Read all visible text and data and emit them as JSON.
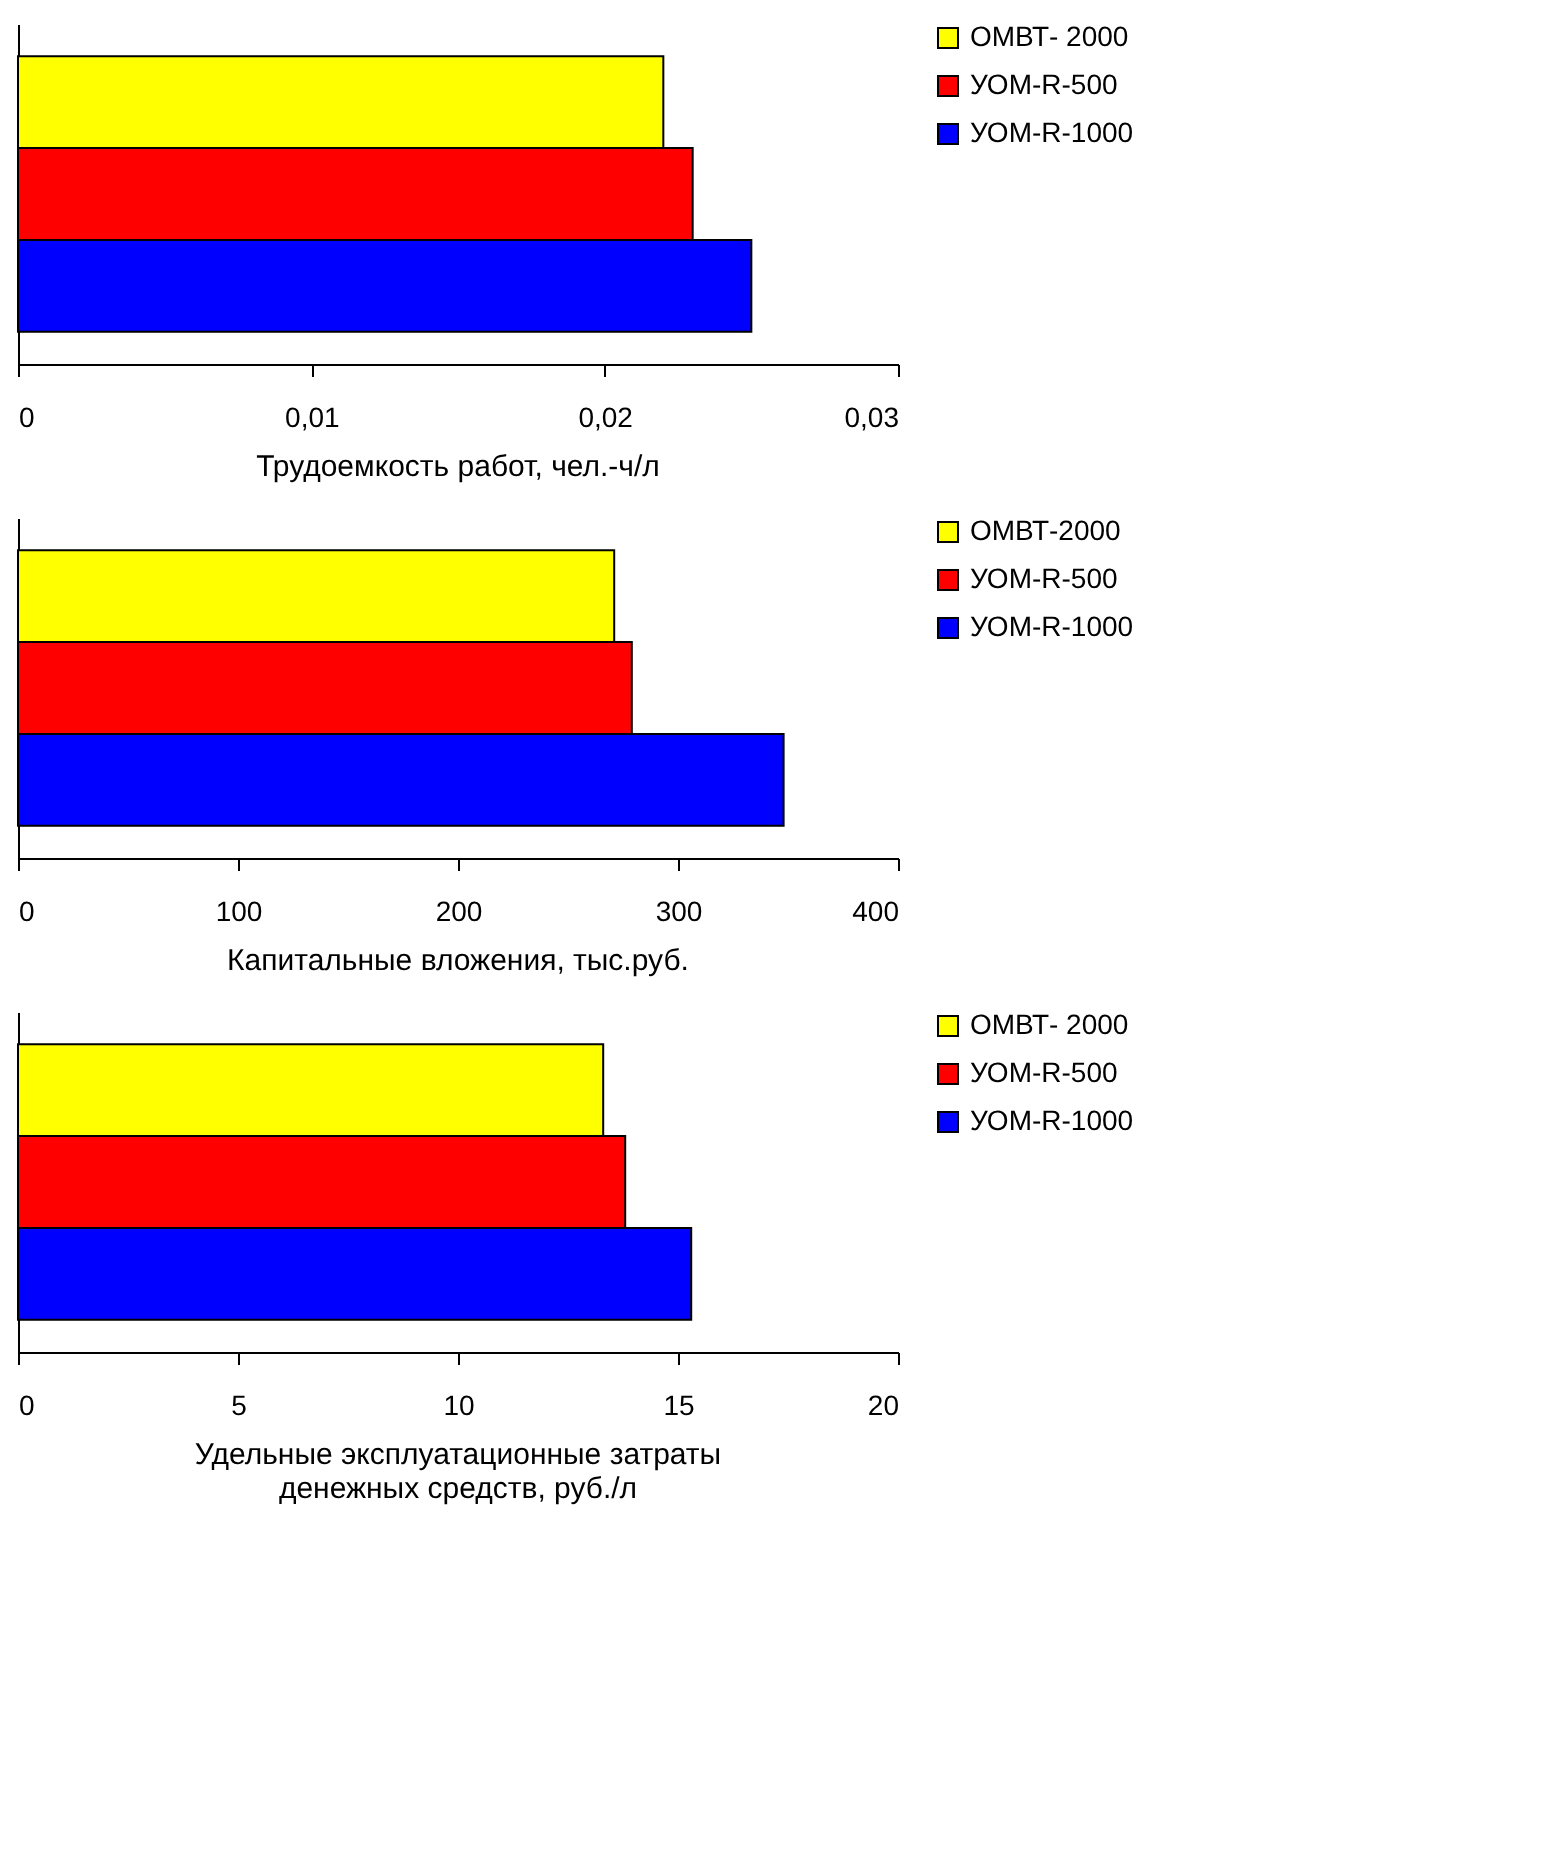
{
  "chart_data": [
    {
      "type": "bar",
      "orientation": "horizontal",
      "xlabel": "Трудоемкость работ, чел.-ч/л",
      "categories": [
        null
      ],
      "xlim": [
        0,
        0.03
      ],
      "xticks": [
        0,
        {
          "value": 0.01,
          "label": "0,01"
        },
        {
          "value": 0.02,
          "label": "0,02"
        },
        {
          "value": 0.03,
          "label": "0,03"
        }
      ],
      "grid": false,
      "legend": "right",
      "series": [
        {
          "name": "ОМВТ- 2000",
          "color": "#ffff00",
          "values": [
            0.022
          ]
        },
        {
          "name": "УОМ-R-500",
          "color": "#ff0000",
          "values": [
            0.023
          ]
        },
        {
          "name": "УОМ-R-1000",
          "color": "#0000ff",
          "values": [
            0.025
          ]
        }
      ]
    },
    {
      "type": "bar",
      "orientation": "horizontal",
      "xlabel": "Капитальные вложения, тыс.руб.",
      "categories": [
        null
      ],
      "xlim": [
        0,
        400
      ],
      "xticks": [
        0,
        100,
        200,
        300,
        400
      ],
      "grid": false,
      "legend": "right",
      "series": [
        {
          "name": "ОМВТ-2000",
          "color": "#ffff00",
          "values": [
            271
          ]
        },
        {
          "name": "УОМ-R-500",
          "color": "#ff0000",
          "values": [
            279
          ]
        },
        {
          "name": "УОМ-R-1000",
          "color": "#0000ff",
          "values": [
            348
          ]
        }
      ]
    },
    {
      "type": "bar",
      "orientation": "horizontal",
      "xlabel": "Удельные эксплуатационные затраты\nденежных средств, руб./л",
      "categories": [
        null
      ],
      "xlim": [
        0,
        20
      ],
      "xticks": [
        0,
        5,
        10,
        15,
        20
      ],
      "grid": false,
      "legend": "right",
      "series": [
        {
          "name": "ОМВТ- 2000",
          "color": "#ffff00",
          "values": [
            13.3
          ]
        },
        {
          "name": "УОМ-R-500",
          "color": "#ff0000",
          "values": [
            13.8
          ]
        },
        {
          "name": "УОМ-R-1000",
          "color": "#0000ff",
          "values": [
            15.3
          ]
        }
      ]
    }
  ]
}
